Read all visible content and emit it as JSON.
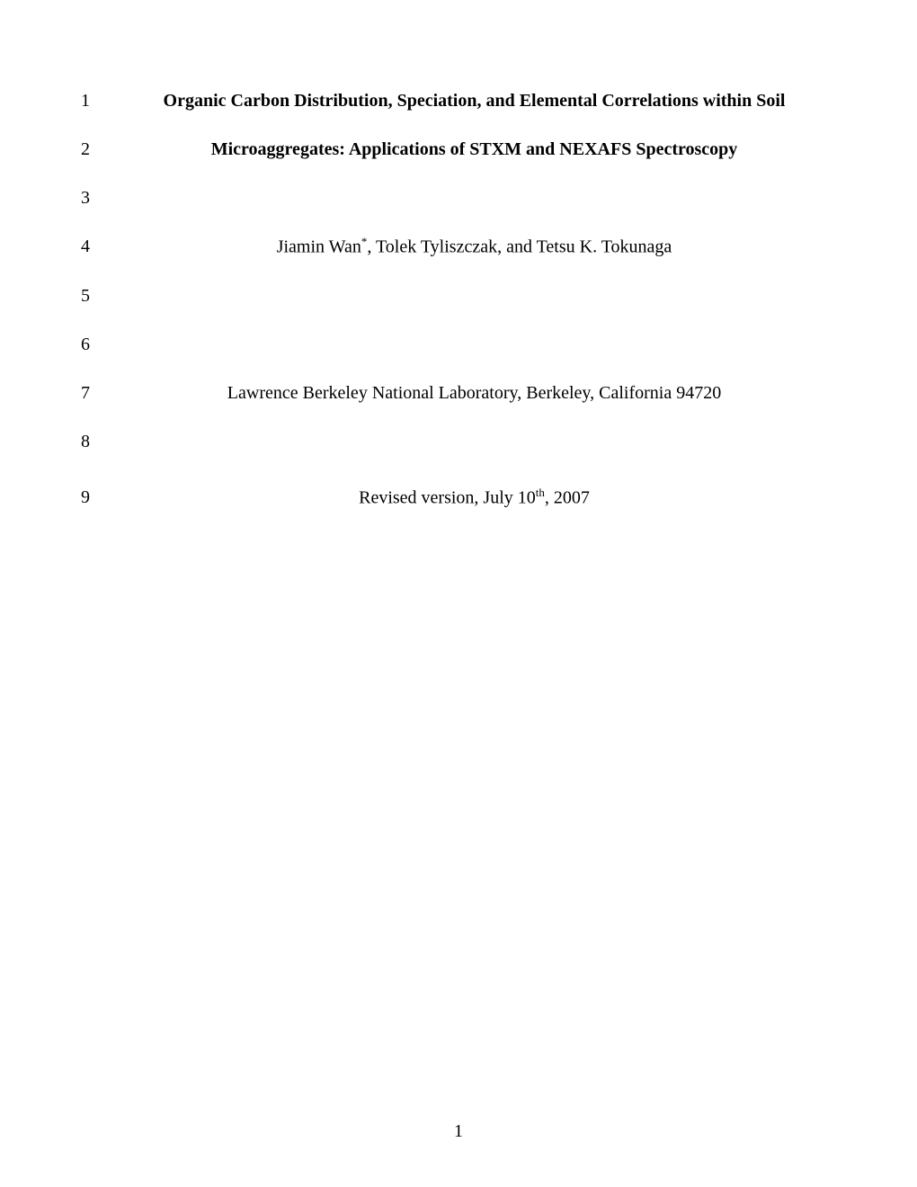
{
  "lines": {
    "1": {
      "number": "1",
      "content": "Organic Carbon Distribution, Speciation, and Elemental Correlations within Soil"
    },
    "2": {
      "number": "2",
      "content": "Microaggregates: Applications of STXM and NEXAFS Spectroscopy"
    },
    "3": {
      "number": "3",
      "content": ""
    },
    "4": {
      "number": "4",
      "author1": "Jiamin Wan",
      "superscript": "*",
      "author_rest": ", Tolek Tyliszczak, and Tetsu K. Tokunaga"
    },
    "5": {
      "number": "5",
      "content": ""
    },
    "6": {
      "number": "6",
      "content": ""
    },
    "7": {
      "number": "7",
      "content": "Lawrence Berkeley National Laboratory, Berkeley, California 94720"
    },
    "8": {
      "number": "8",
      "content": ""
    },
    "9": {
      "number": "9",
      "revision_prefix": "Revised version, July 10",
      "revision_super": "th",
      "revision_suffix": ", 2007"
    }
  },
  "page_number": "1"
}
